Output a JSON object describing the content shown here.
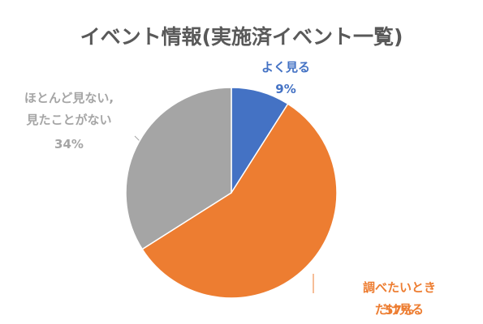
{
  "chart_data": {
    "type": "pie",
    "title": "イベント情報(実施済イベント一覧)",
    "categories": [
      "よく見る",
      "調べたいときだけ見る",
      "ほとんど見ない,\n見たことがない"
    ],
    "values": [
      9,
      57,
      34
    ],
    "value_labels": [
      "9%",
      "57%",
      "34%"
    ],
    "colors": [
      "#4472c4",
      "#ed7d31",
      "#a5a5a5"
    ]
  }
}
